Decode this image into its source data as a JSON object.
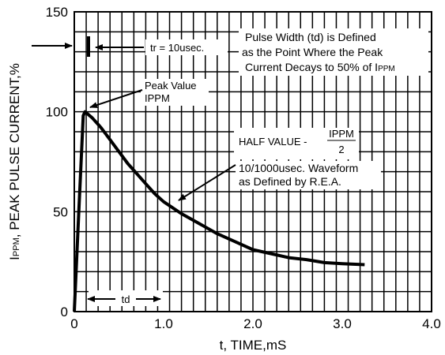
{
  "chart_data": {
    "type": "line",
    "x_ticks": [
      "0",
      "1.0",
      "2.0",
      "3.0",
      "4.0"
    ],
    "y_ticks": [
      "0",
      "50",
      "100",
      "150"
    ],
    "xlim": [
      0,
      4
    ],
    "ylim": [
      0,
      150
    ],
    "grid": true,
    "xlabel": "t, TIME,mS",
    "ylabel_prefix": "I",
    "ylabel_sub": "PPM",
    "ylabel_rest": ", PEAK PULSE CURRENT,%",
    "series": [
      {
        "x": [
          0,
          0.05,
          0.1,
          0.12,
          0.2,
          0.3,
          0.4,
          0.5,
          0.6,
          0.7,
          0.8,
          0.9,
          1.0,
          1.2,
          1.4,
          1.6,
          1.8,
          2.0,
          2.2,
          2.4,
          2.6,
          2.8,
          3.0,
          3.25
        ],
        "y": [
          0,
          50,
          98,
          100,
          97,
          92,
          86,
          80,
          74,
          69,
          64,
          59,
          55,
          49,
          44,
          39,
          35,
          31,
          29,
          27,
          26,
          24.5,
          24,
          23.5
        ]
      }
    ],
    "annotations": {
      "tr": "tr = 10usec.",
      "pulse_width_1": "Pulse Width (td) is Defined",
      "pulse_width_2": "as the Point Where the Peak",
      "pulse_width_3a": "Current Decays to 50% of I",
      "pulse_width_3b": "PPM",
      "peak_1": "Peak Value",
      "peak_2": "IPPM",
      "half_value": "HALF VALUE -",
      "half_num": "IPPM",
      "half_den": "2",
      "waveform_1": "10/1000usec. Waveform",
      "waveform_2": "as Defined by R.E.A.",
      "td": "td"
    }
  }
}
